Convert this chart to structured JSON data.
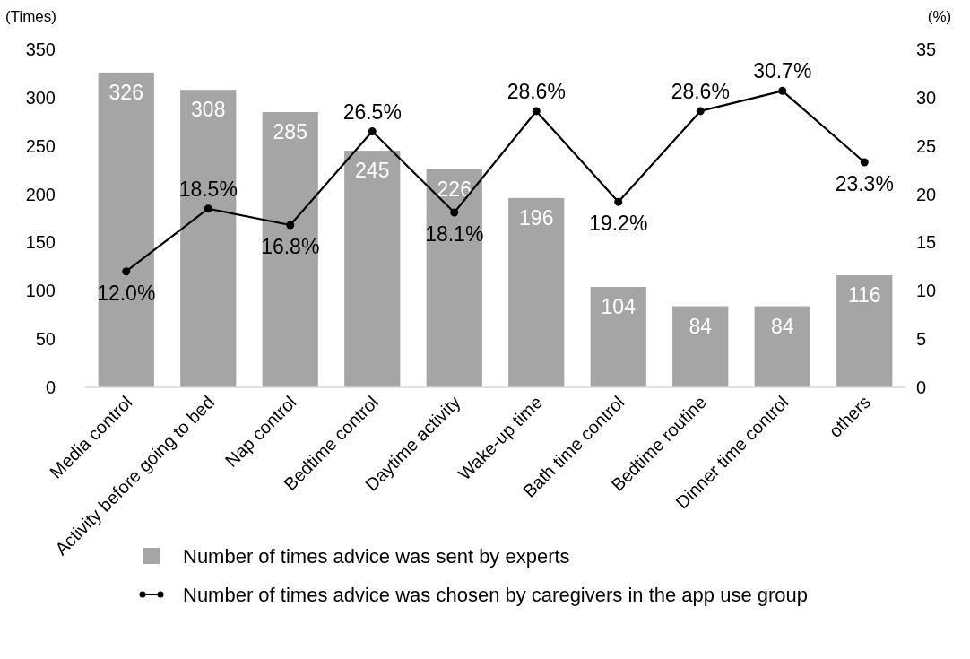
{
  "chart_data": {
    "type": "bar",
    "ylabel": "(Times)",
    "y2label": "(%)",
    "categories": [
      "Media control",
      "Activity before going to bed",
      "Nap control",
      "Bedtime control",
      "Daytime activity",
      "Wake-up time",
      "Bath time control",
      "Bedtime routine",
      "Dinner time control",
      "others"
    ],
    "series": [
      {
        "name": "Number of times advice was sent by experts",
        "color": "#a5a5a5",
        "values": [
          326,
          308,
          285,
          245,
          226,
          196,
          104,
          84,
          84,
          116
        ],
        "value_labels": [
          "326",
          "308",
          "285",
          "245",
          "226",
          "196",
          "104",
          "84",
          "84",
          "116"
        ]
      },
      {
        "name": "Number of times advice was chosen by caregivers in the app use group",
        "type": "line",
        "axis": "y2",
        "color": "#000000",
        "values": [
          12.0,
          18.5,
          16.8,
          26.5,
          18.1,
          28.6,
          19.2,
          28.6,
          30.7,
          23.3
        ],
        "value_labels": [
          "12.0%",
          "18.5%",
          "16.8%",
          "26.5%",
          "18.1%",
          "28.6%",
          "19.2%",
          "28.6%",
          "30.7%",
          "23.3%"
        ]
      }
    ],
    "ylim": [
      0,
      350
    ],
    "yticks": [
      0,
      50,
      100,
      150,
      200,
      250,
      300,
      350
    ],
    "y2lim": [
      0,
      35
    ],
    "y2ticks": [
      0,
      5,
      10,
      15,
      20,
      25,
      30,
      35
    ],
    "marker": "circle",
    "line_style": "solid",
    "legend": "bottom",
    "grid": false
  }
}
